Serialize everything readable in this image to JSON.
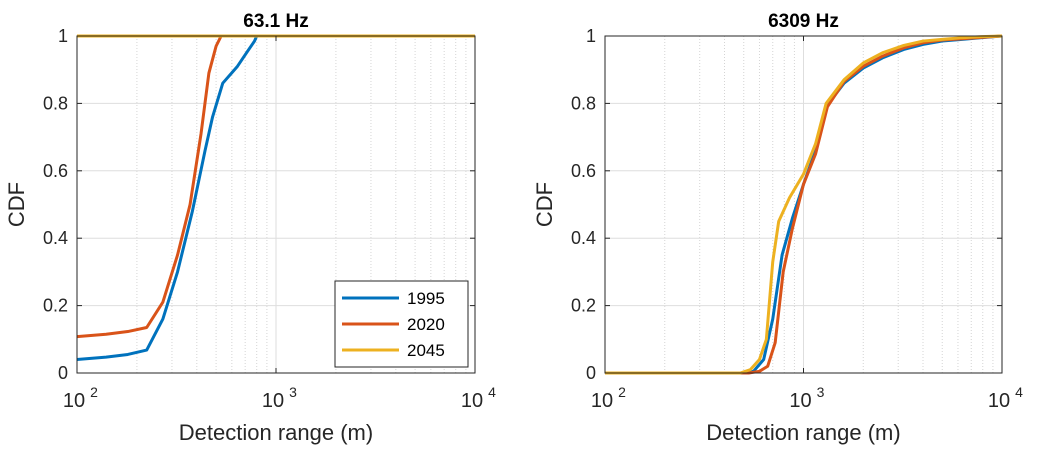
{
  "chart_data": [
    {
      "type": "line",
      "title": "63.1 Hz",
      "xlabel": "Detection range (m)",
      "ylabel": "CDF",
      "xscale": "log",
      "xlim": [
        100,
        10000
      ],
      "ylim": [
        0,
        1
      ],
      "xticks": [
        {
          "value": 100,
          "base": "10",
          "exp": "2"
        },
        {
          "value": 1000,
          "base": "10",
          "exp": "3"
        },
        {
          "value": 10000,
          "base": "10",
          "exp": "4"
        }
      ],
      "yticks": [
        {
          "value": 0,
          "label": "0"
        },
        {
          "value": 0.2,
          "label": "0.2"
        },
        {
          "value": 0.4,
          "label": "0.4"
        },
        {
          "value": 0.6,
          "label": "0.6"
        },
        {
          "value": 0.8,
          "label": "0.8"
        },
        {
          "value": 1,
          "label": "1"
        }
      ],
      "grid": true,
      "legend_position": "bottom-right",
      "series": [
        {
          "name": "1995",
          "color": "#0072BD",
          "x": [
            100,
            140,
            180,
            224,
            270,
            320,
            380,
            440,
            480,
            540,
            640,
            720,
            780,
            800,
            10000
          ],
          "y": [
            0.04,
            0.047,
            0.055,
            0.068,
            0.16,
            0.3,
            0.48,
            0.66,
            0.76,
            0.86,
            0.91,
            0.955,
            0.985,
            1.0,
            1.0
          ]
        },
        {
          "name": "2020",
          "color": "#D95319",
          "x": [
            100,
            140,
            180,
            224,
            270,
            320,
            370,
            420,
            460,
            500,
            530,
            10000
          ],
          "y": [
            0.108,
            0.115,
            0.123,
            0.135,
            0.21,
            0.35,
            0.5,
            0.71,
            0.89,
            0.97,
            1.0,
            1.0
          ]
        },
        {
          "name": "2045",
          "color": "#EDB120",
          "x": [
            100,
            10000
          ],
          "y": [
            1.0,
            1.0
          ]
        }
      ]
    },
    {
      "type": "line",
      "title": "6309 Hz",
      "xlabel": "Detection range (m)",
      "ylabel": "CDF",
      "xscale": "log",
      "xlim": [
        100,
        10000
      ],
      "ylim": [
        0,
        1
      ],
      "xticks": [
        {
          "value": 100,
          "base": "10",
          "exp": "2"
        },
        {
          "value": 1000,
          "base": "10",
          "exp": "3"
        },
        {
          "value": 10000,
          "base": "10",
          "exp": "4"
        }
      ],
      "yticks": [
        {
          "value": 0,
          "label": "0"
        },
        {
          "value": 0.2,
          "label": "0.2"
        },
        {
          "value": 0.4,
          "label": "0.4"
        },
        {
          "value": 0.6,
          "label": "0.6"
        },
        {
          "value": 0.8,
          "label": "0.8"
        },
        {
          "value": 1,
          "label": "1"
        }
      ],
      "grid": true,
      "series": [
        {
          "name": "1995",
          "color": "#0072BD",
          "x": [
            100,
            500,
            560,
            630,
            700,
            780,
            880,
            1000,
            1150,
            1300,
            1600,
            2000,
            2500,
            3200,
            4000,
            5000,
            6300,
            7900,
            10000
          ],
          "y": [
            0,
            0,
            0.005,
            0.04,
            0.16,
            0.35,
            0.46,
            0.56,
            0.66,
            0.79,
            0.86,
            0.905,
            0.935,
            0.96,
            0.975,
            0.985,
            0.99,
            0.995,
            1.0
          ]
        },
        {
          "name": "2020",
          "color": "#D95319",
          "x": [
            100,
            530,
            600,
            660,
            720,
            790,
            880,
            1000,
            1150,
            1320,
            1600,
            2000,
            2500,
            3200,
            4000,
            5000,
            6300,
            7900,
            10000
          ],
          "y": [
            0,
            0,
            0.005,
            0.02,
            0.09,
            0.3,
            0.43,
            0.56,
            0.65,
            0.79,
            0.865,
            0.91,
            0.94,
            0.965,
            0.98,
            0.988,
            0.992,
            0.996,
            1.0
          ]
        },
        {
          "name": "2045",
          "color": "#EDB120",
          "x": [
            100,
            480,
            540,
            600,
            650,
            700,
            750,
            850,
            1000,
            1150,
            1300,
            1600,
            2000,
            2500,
            3200,
            4000,
            5000,
            6300,
            7900,
            10000
          ],
          "y": [
            0,
            0,
            0.01,
            0.04,
            0.1,
            0.33,
            0.45,
            0.52,
            0.59,
            0.68,
            0.8,
            0.87,
            0.92,
            0.95,
            0.972,
            0.985,
            0.99,
            0.995,
            0.998,
            1.0
          ]
        }
      ]
    }
  ]
}
